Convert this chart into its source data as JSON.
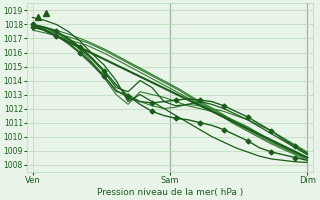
{
  "xlabel": "Pression niveau de la mer( hPa )",
  "ylim": [
    1007.5,
    1019.5
  ],
  "yticks": [
    1008,
    1009,
    1010,
    1011,
    1012,
    1013,
    1014,
    1015,
    1016,
    1017,
    1018,
    1019
  ],
  "xtick_labels": [
    "Ven",
    "Sam",
    "Dim"
  ],
  "xtick_positions": [
    0.0,
    0.5,
    1.0
  ],
  "background_color": "#e8f4e8",
  "grid_color": "#b8d8b8",
  "line_color_dark": "#1a5c1a",
  "line_color_mid": "#2d7a2d",
  "vline_color": "#666666",
  "series": {
    "smooth_lines": [
      [
        1018.0,
        1017.7,
        1017.3,
        1016.8,
        1016.2,
        1015.5,
        1014.8,
        1014.1,
        1013.4,
        1012.6,
        1011.9,
        1011.1,
        1010.4,
        1009.7,
        1009.0,
        1008.5
      ],
      [
        1017.8,
        1017.5,
        1017.1,
        1016.7,
        1016.1,
        1015.4,
        1014.7,
        1014.0,
        1013.3,
        1012.5,
        1011.8,
        1011.0,
        1010.3,
        1009.6,
        1009.0,
        1008.4
      ],
      [
        1017.6,
        1017.3,
        1016.9,
        1016.5,
        1015.9,
        1015.2,
        1014.5,
        1013.8,
        1013.1,
        1012.4,
        1011.7,
        1010.9,
        1010.2,
        1009.5,
        1008.9,
        1008.3
      ]
    ],
    "trend_line": [
      1018.0,
      1008.5
    ],
    "spiked_lines": [
      [
        1018.0,
        1017.8,
        1017.4,
        1016.9,
        1016.2,
        1015.3,
        1014.3,
        1013.2,
        1013.0,
        1012.5,
        1012.2,
        1012.0,
        1012.1,
        1012.3,
        1012.2,
        1012.0,
        1011.8,
        1011.5,
        1011.2,
        1010.8,
        1010.4,
        1009.9,
        1009.4,
        1008.9
      ],
      [
        1018.0,
        1017.7,
        1017.2,
        1016.6,
        1015.9,
        1015.1,
        1014.2,
        1013.0,
        1012.3,
        1013.2,
        1013.0,
        1012.8,
        1012.5,
        1012.2,
        1012.0,
        1011.8,
        1011.5,
        1011.1,
        1010.7,
        1010.2,
        1009.7,
        1009.3,
        1008.9,
        1008.5
      ]
    ],
    "dip_line": [
      1018.5,
      1018.3,
      1018.0,
      1017.5,
      1016.8,
      1015.9,
      1015.1,
      1014.0,
      1012.5,
      1013.0,
      1012.5,
      1012.0,
      1011.5,
      1011.0,
      1010.5,
      1010.0,
      1009.6,
      1009.2,
      1008.9,
      1008.6,
      1008.4,
      1008.3,
      1008.2,
      1008.15
    ],
    "deep_dip_line": [
      1018.0,
      1017.8,
      1017.5,
      1017.0,
      1016.3,
      1015.5,
      1014.6,
      1013.5,
      1013.2,
      1014.0,
      1013.5,
      1012.5,
      1012.2,
      1012.3,
      1012.5,
      1012.3,
      1012.0,
      1011.6,
      1011.2,
      1010.7,
      1010.2,
      1009.7,
      1009.2,
      1008.7
    ],
    "marker_line1": [
      1017.8,
      1017.6,
      1017.2,
      1016.7,
      1016.0,
      1015.2,
      1014.3,
      1013.3,
      1012.8,
      1012.5,
      1012.4,
      1012.5,
      1012.6,
      1012.7,
      1012.6,
      1012.5,
      1012.2,
      1011.8,
      1011.4,
      1010.9,
      1010.4,
      1009.8,
      1009.3,
      1008.8
    ],
    "marker_line2": [
      1018.0,
      1017.8,
      1017.5,
      1017.0,
      1016.4,
      1015.6,
      1014.7,
      1013.7,
      1012.9,
      1012.3,
      1011.8,
      1011.5,
      1011.3,
      1011.2,
      1011.0,
      1010.8,
      1010.5,
      1010.1,
      1009.7,
      1009.2,
      1008.9,
      1008.7,
      1008.5,
      1008.3
    ]
  }
}
